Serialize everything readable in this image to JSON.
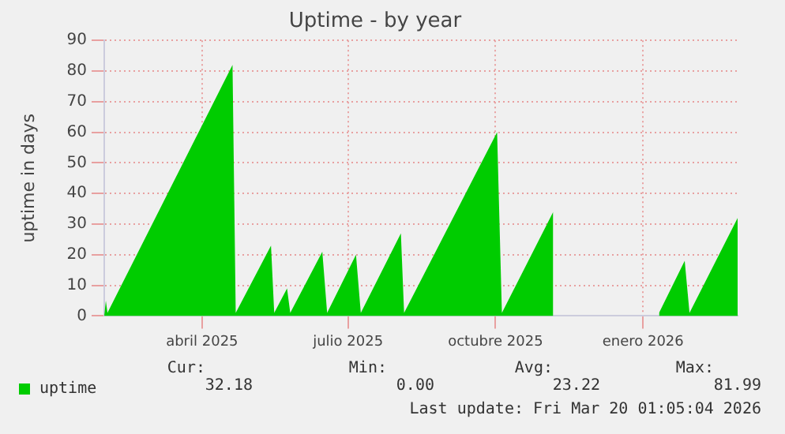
{
  "chart_data": {
    "type": "area",
    "title": "Uptime - by year",
    "ylabel": "uptime in days",
    "x": [
      "2025-01-30",
      "2025-01-31",
      "2025-02-01",
      "2025-04-20",
      "2025-04-22",
      "2025-05-14",
      "2025-05-16",
      "2025-05-24",
      "2025-05-26",
      "2025-06-15",
      "2025-06-18",
      "2025-07-06",
      "2025-07-09",
      "2025-08-03",
      "2025-08-05",
      "2025-10-02",
      "2025-10-05",
      "2025-11-06",
      "2025-11-07",
      "2026-01-11",
      "2026-01-27",
      "2026-01-30",
      "2026-03-01"
    ],
    "series": [
      {
        "name": "uptime",
        "color": "#00cc00",
        "values": [
          0,
          5,
          1,
          82,
          1,
          23,
          1,
          9,
          1,
          21,
          1,
          20,
          1,
          27,
          1,
          60,
          1,
          34,
          null,
          1,
          18,
          1,
          32
        ]
      }
    ],
    "xlim": [
      "2025-01-30",
      "2026-03-01"
    ],
    "xticks": [
      {
        "value": "2025-04-01",
        "label": "abril 2025"
      },
      {
        "value": "2025-07-01",
        "label": "julio 2025"
      },
      {
        "value": "2025-10-01",
        "label": "octubre 2025"
      },
      {
        "value": "2026-01-01",
        "label": "enero 2026"
      }
    ],
    "ylim": [
      0,
      90
    ],
    "yticks": [
      0,
      10,
      20,
      30,
      40,
      50,
      60,
      70,
      80,
      90
    ],
    "grid": true,
    "legend": "bottom",
    "annotations": [
      "Cur: 32.18",
      "Min: 0.00",
      "Avg: 23.22",
      "Max: 81.99",
      "Last update: Fri Mar 20 01:05:04 2026"
    ]
  }
}
